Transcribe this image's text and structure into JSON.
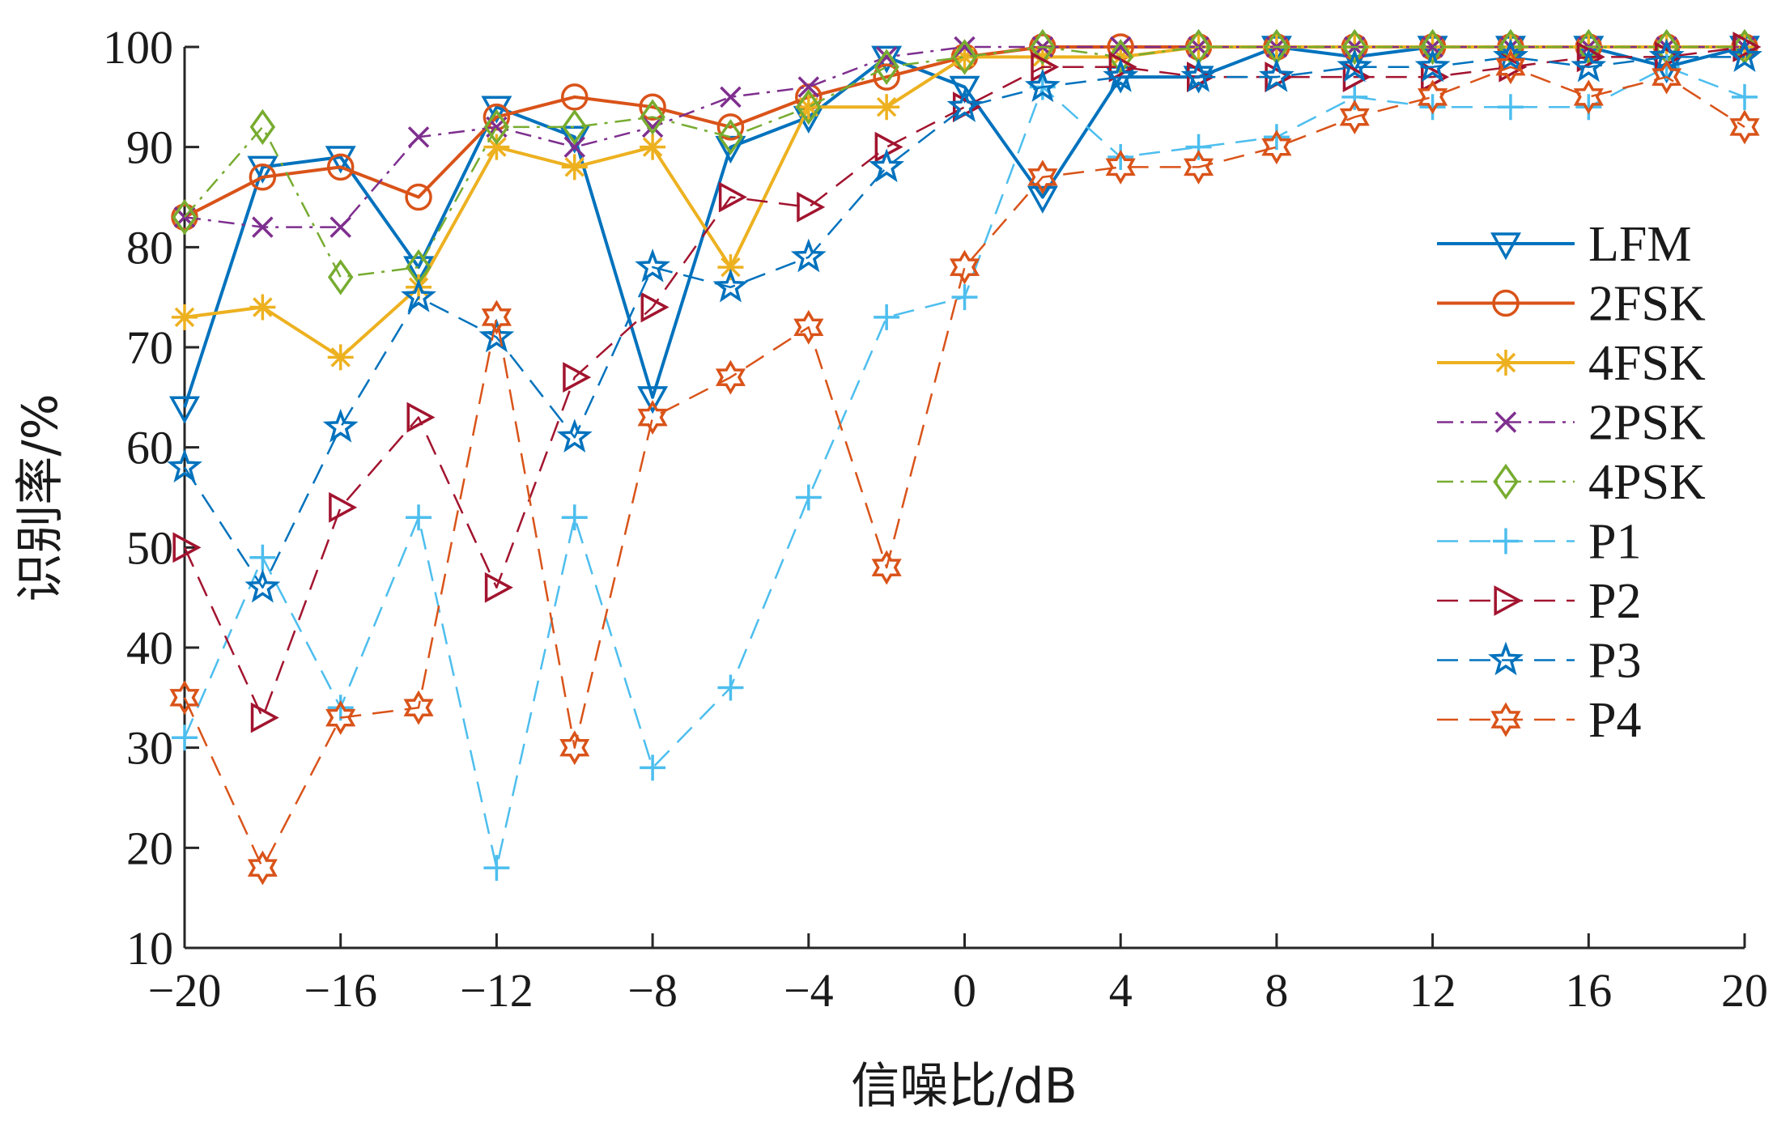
{
  "chart_data": {
    "type": "line",
    "xlabel": "信噪比/dB",
    "ylabel": "识别率/%",
    "xlim": [
      -20,
      20
    ],
    "ylim": [
      10,
      100
    ],
    "xticks": [
      "−20",
      "−16",
      "−12",
      "−8",
      "−4",
      "0",
      "4",
      "8",
      "12",
      "16",
      "20"
    ],
    "yticks": [
      "10",
      "20",
      "30",
      "40",
      "50",
      "60",
      "70",
      "80",
      "90",
      "100"
    ],
    "grid": false,
    "legend_position": "right",
    "x": [
      -20,
      -18,
      -16,
      -14,
      -12,
      -10,
      -8,
      -6,
      -4,
      -2,
      0,
      2,
      4,
      6,
      8,
      10,
      12,
      14,
      16,
      18,
      20
    ],
    "series": [
      {
        "name": "LFM",
        "color": "#0072BD",
        "dash": "solid",
        "marker": "triangle-down",
        "values": [
          64,
          88,
          89,
          78,
          94,
          91,
          65,
          90,
          93,
          99,
          96,
          85,
          97,
          97,
          100,
          99,
          100,
          100,
          100,
          98,
          100
        ]
      },
      {
        "name": "2FSK",
        "color": "#D95319",
        "dash": "solid",
        "marker": "circle",
        "values": [
          83,
          87,
          88,
          85,
          93,
          95,
          94,
          92,
          95,
          97,
          99,
          100,
          100,
          100,
          100,
          100,
          100,
          100,
          100,
          100,
          100
        ]
      },
      {
        "name": "4FSK",
        "color": "#EDB120",
        "dash": "solid",
        "marker": "asterisk",
        "values": [
          73,
          74,
          69,
          76,
          90,
          88,
          90,
          78,
          94,
          94,
          99,
          99,
          99,
          100,
          100,
          100,
          100,
          100,
          100,
          100,
          100
        ]
      },
      {
        "name": "2PSK",
        "color": "#7E2F8E",
        "dash": "dashdot",
        "marker": "x",
        "values": [
          83,
          82,
          82,
          91,
          92,
          90,
          92,
          95,
          96,
          99,
          100,
          100,
          100,
          100,
          100,
          100,
          100,
          100,
          100,
          100,
          100
        ]
      },
      {
        "name": "4PSK",
        "color": "#77AC30",
        "dash": "dashdot",
        "marker": "diamond",
        "values": [
          83,
          92,
          77,
          78,
          92,
          92,
          93,
          91,
          94,
          98,
          99,
          100,
          99,
          100,
          100,
          100,
          100,
          100,
          100,
          100,
          100
        ]
      },
      {
        "name": "P1",
        "color": "#4DBEEE",
        "dash": "dashed",
        "marker": "plus",
        "values": [
          31,
          49,
          34,
          53,
          18,
          53,
          28,
          36,
          55,
          73,
          75,
          96,
          89,
          90,
          91,
          95,
          94,
          94,
          94,
          98,
          95
        ]
      },
      {
        "name": "P2",
        "color": "#A2142F",
        "dash": "dashed",
        "marker": "triangle-right",
        "values": [
          50,
          33,
          54,
          63,
          46,
          67,
          74,
          85,
          84,
          90,
          94,
          98,
          98,
          97,
          97,
          97,
          97,
          98,
          99,
          99,
          100
        ]
      },
      {
        "name": "P3",
        "color": "#0072BD",
        "dash": "dashed",
        "marker": "pentagram",
        "values": [
          58,
          46,
          62,
          75,
          71,
          61,
          78,
          76,
          79,
          88,
          94,
          96,
          97,
          97,
          97,
          98,
          98,
          99,
          98,
          99,
          99
        ]
      },
      {
        "name": "P4",
        "color": "#D95319",
        "dash": "dashed",
        "marker": "hexagram",
        "values": [
          35,
          18,
          33,
          34,
          73,
          30,
          63,
          67,
          72,
          48,
          78,
          87,
          88,
          88,
          90,
          93,
          95,
          98,
          95,
          97,
          92
        ]
      }
    ]
  }
}
